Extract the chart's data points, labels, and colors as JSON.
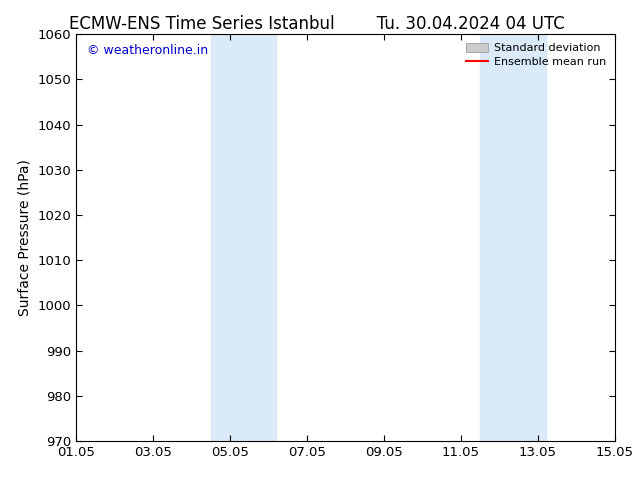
{
  "title_left": "ECMW-ENS Time Series Istanbul",
  "title_right": "Tu. 30.04.2024 04 UTC",
  "ylabel": "Surface Pressure (hPa)",
  "ylim": [
    970,
    1060
  ],
  "yticks": [
    970,
    980,
    990,
    1000,
    1010,
    1020,
    1030,
    1040,
    1050,
    1060
  ],
  "xlim": [
    0,
    14
  ],
  "xtick_labels": [
    "01.05",
    "03.05",
    "05.05",
    "07.05",
    "09.05",
    "11.05",
    "13.05",
    "15.05"
  ],
  "xtick_positions": [
    0,
    2,
    4,
    6,
    8,
    10,
    12,
    14
  ],
  "shaded_bands": [
    {
      "x_start": 3.5,
      "x_end": 5.2
    },
    {
      "x_start": 10.5,
      "x_end": 12.2
    }
  ],
  "shade_color": "#daeaf8",
  "background_color": "#ffffff",
  "watermark_text": "© weatheronline.in",
  "watermark_color": "#0000cc",
  "legend_std_color": "#cccccc",
  "legend_std_edge": "#aaaaaa",
  "legend_mean_color": "#ff0000",
  "title_fontsize": 12,
  "axis_fontsize": 10,
  "tick_fontsize": 9.5,
  "watermark_fontsize": 9
}
